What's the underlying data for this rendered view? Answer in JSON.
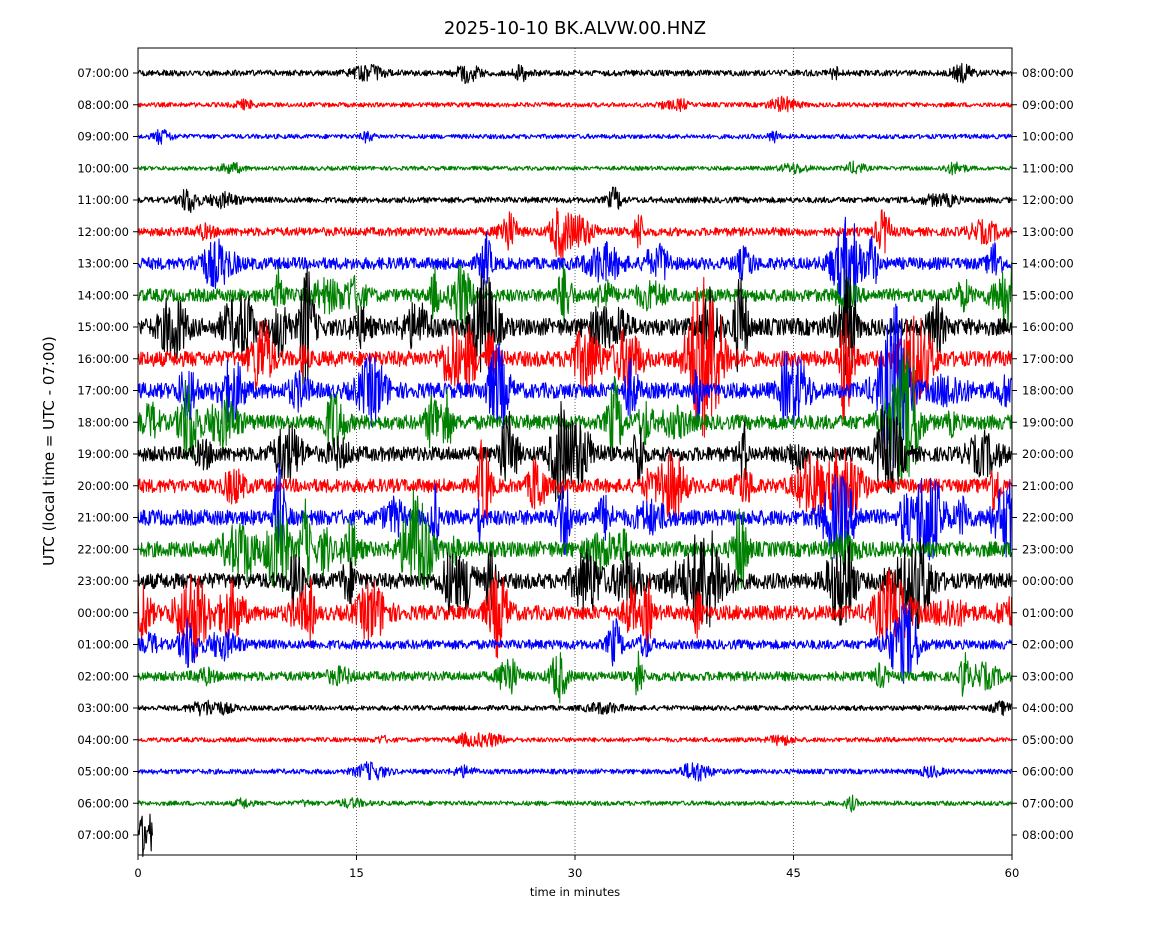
{
  "chart_data": {
    "type": "line",
    "title": "2025-10-10 BK.ALVW.00.HNZ",
    "xlabel": "time in minutes",
    "ylabel": "UTC (local time = UTC - 07:00)",
    "xlim": [
      0,
      60
    ],
    "x_ticks": [
      0,
      15,
      30,
      45,
      60
    ],
    "x_gridlines": [
      15,
      30,
      45
    ],
    "grid_style": "dotted vertical",
    "legend": "none",
    "left_tick_labels": [
      "07:00:00",
      "08:00:00",
      "09:00:00",
      "10:00:00",
      "11:00:00",
      "12:00:00",
      "13:00:00",
      "14:00:00",
      "15:00:00",
      "16:00:00",
      "17:00:00",
      "18:00:00",
      "19:00:00",
      "20:00:00",
      "21:00:00",
      "22:00:00",
      "23:00:00",
      "00:00:00",
      "01:00:00",
      "02:00:00",
      "03:00:00",
      "04:00:00",
      "05:00:00",
      "06:00:00",
      "07:00:00"
    ],
    "right_tick_labels": [
      "08:00:00",
      "09:00:00",
      "10:00:00",
      "11:00:00",
      "12:00:00",
      "13:00:00",
      "14:00:00",
      "15:00:00",
      "16:00:00",
      "17:00:00",
      "18:00:00",
      "19:00:00",
      "20:00:00",
      "21:00:00",
      "22:00:00",
      "23:00:00",
      "00:00:00",
      "01:00:00",
      "02:00:00",
      "03:00:00",
      "04:00:00",
      "05:00:00",
      "06:00:00",
      "07:00:00",
      "08:00:00"
    ],
    "trace_color_cycle": [
      "#000000",
      "#ff0000",
      "#0000ff",
      "#008000"
    ],
    "traces": [
      {
        "hour": "07:00:00",
        "activity": 0.8,
        "start": 0,
        "end": 60
      },
      {
        "hour": "08:00:00",
        "activity": 0.5
      },
      {
        "hour": "09:00:00",
        "activity": 0.5
      },
      {
        "hour": "10:00:00",
        "activity": 0.4
      },
      {
        "hour": "11:00:00",
        "activity": 0.8
      },
      {
        "hour": "12:00:00",
        "activity": 1.4
      },
      {
        "hour": "13:00:00",
        "activity": 2.2
      },
      {
        "hour": "14:00:00",
        "activity": 2.4
      },
      {
        "hour": "15:00:00",
        "activity": 3.4
      },
      {
        "hour": "16:00:00",
        "activity": 3.0
      },
      {
        "hour": "17:00:00",
        "activity": 3.0
      },
      {
        "hour": "18:00:00",
        "activity": 2.8
      },
      {
        "hour": "19:00:00",
        "activity": 2.8
      },
      {
        "hour": "20:00:00",
        "activity": 2.6
      },
      {
        "hour": "21:00:00",
        "activity": 3.0
      },
      {
        "hour": "22:00:00",
        "activity": 3.0
      },
      {
        "hour": "23:00:00",
        "activity": 3.0
      },
      {
        "hour": "00:00:00",
        "activity": 2.8
      },
      {
        "hour": "01:00:00",
        "activity": 1.6
      },
      {
        "hour": "02:00:00",
        "activity": 1.6
      },
      {
        "hour": "03:00:00",
        "activity": 0.6
      },
      {
        "hour": "04:00:00",
        "activity": 0.5
      },
      {
        "hour": "05:00:00",
        "activity": 0.6
      },
      {
        "hour": "06:00:00",
        "activity": 0.5
      },
      {
        "hour": "07:00:00",
        "activity": 0.6,
        "start": 0,
        "end": 1
      }
    ]
  }
}
